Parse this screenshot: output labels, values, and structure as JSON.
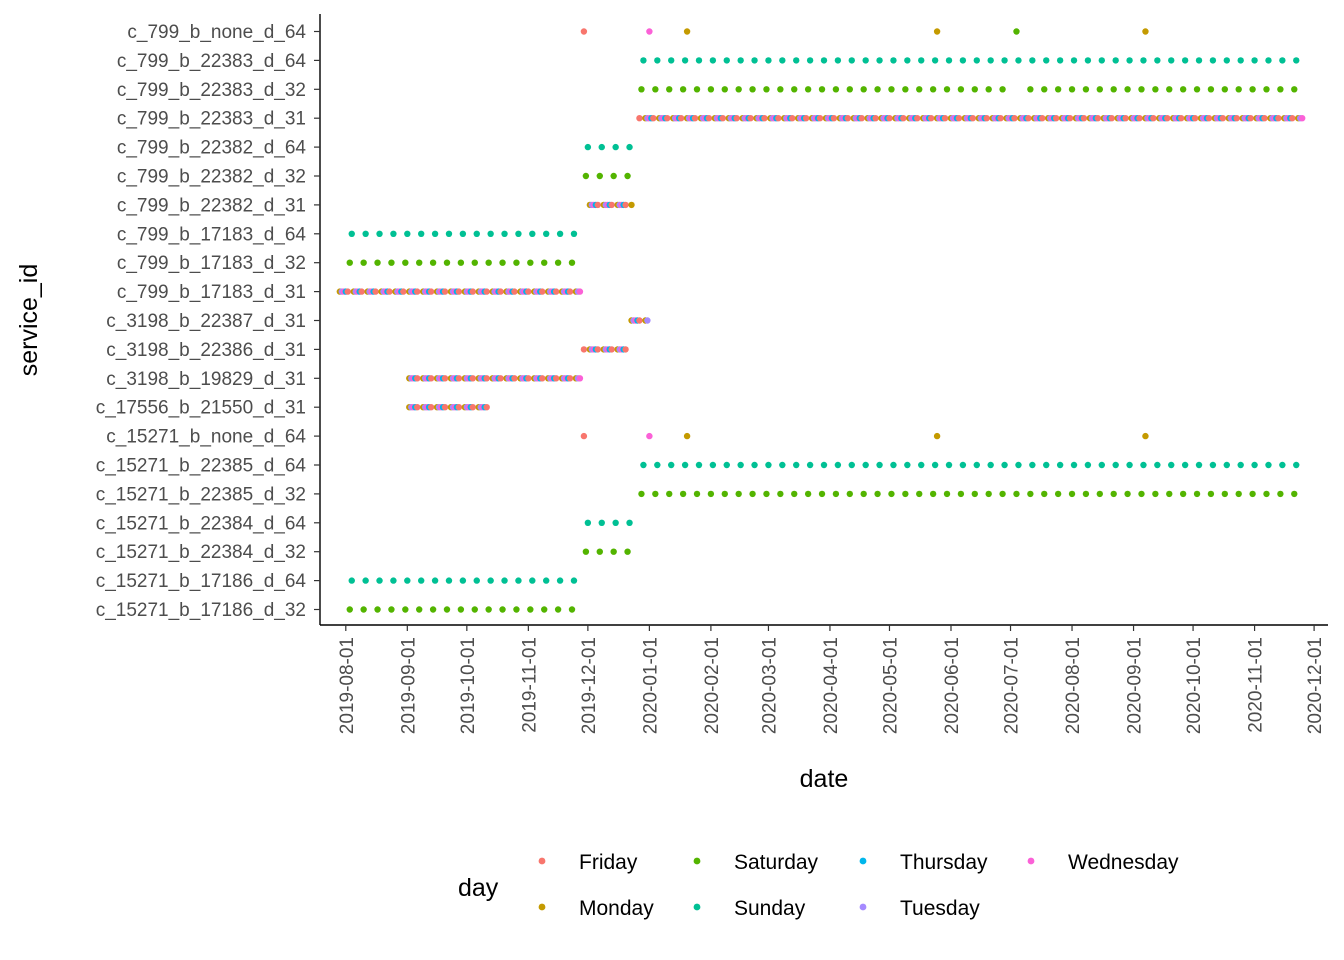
{
  "chart_data": {
    "type": "scatter",
    "title": "",
    "xlabel": "date",
    "ylabel": "service_id",
    "grid": false,
    "legend_position": "bottom",
    "xlim": [
      "2019-07-19",
      "2020-12-08"
    ],
    "x_ticks": [
      "2019-08-01",
      "2019-09-01",
      "2019-10-01",
      "2019-11-01",
      "2019-12-01",
      "2020-01-01",
      "2020-02-01",
      "2020-03-01",
      "2020-04-01",
      "2020-05-01",
      "2020-06-01",
      "2020-07-01",
      "2020-08-01",
      "2020-09-01",
      "2020-10-01",
      "2020-11-01",
      "2020-12-01"
    ],
    "categories": [
      "c_799_b_none_d_64",
      "c_799_b_22383_d_64",
      "c_799_b_22383_d_32",
      "c_799_b_22383_d_31",
      "c_799_b_22382_d_64",
      "c_799_b_22382_d_32",
      "c_799_b_22382_d_31",
      "c_799_b_17183_d_64",
      "c_799_b_17183_d_32",
      "c_799_b_17183_d_31",
      "c_3198_b_22387_d_31",
      "c_3198_b_22386_d_31",
      "c_3198_b_19829_d_31",
      "c_17556_b_21550_d_31",
      "c_15271_b_none_d_64",
      "c_15271_b_22385_d_64",
      "c_15271_b_22385_d_32",
      "c_15271_b_22384_d_64",
      "c_15271_b_22384_d_32",
      "c_15271_b_17186_d_64",
      "c_15271_b_17186_d_32"
    ],
    "legend_title": "day",
    "series": [
      {
        "name": "Friday",
        "color": "#F8766D"
      },
      {
        "name": "Monday",
        "color": "#C49A00"
      },
      {
        "name": "Saturday",
        "color": "#53B400"
      },
      {
        "name": "Sunday",
        "color": "#00C094"
      },
      {
        "name": "Thursday",
        "color": "#00B6EB"
      },
      {
        "name": "Tuesday",
        "color": "#A58AFF"
      },
      {
        "name": "Wednesday",
        "color": "#FB61D7"
      }
    ],
    "weekly_runs": [
      {
        "service": "c_799_b_22383_d_64",
        "days": [
          "Sunday"
        ],
        "start": "2019-12-29",
        "end": "2020-11-22"
      },
      {
        "service": "c_799_b_22383_d_32",
        "days": [
          "Saturday"
        ],
        "start": "2019-12-28",
        "end": "2020-06-27"
      },
      {
        "service": "c_799_b_22383_d_32",
        "days": [
          "Saturday"
        ],
        "start": "2020-07-11",
        "end": "2020-11-21"
      },
      {
        "service": "c_799_b_22383_d_31",
        "days": [
          "Monday",
          "Tuesday",
          "Wednesday",
          "Thursday",
          "Friday"
        ],
        "start": "2019-12-27",
        "end": "2020-11-25"
      },
      {
        "service": "c_799_b_22382_d_64",
        "days": [
          "Sunday"
        ],
        "start": "2019-12-01",
        "end": "2019-12-22"
      },
      {
        "service": "c_799_b_22382_d_32",
        "days": [
          "Saturday"
        ],
        "start": "2019-11-30",
        "end": "2019-12-21"
      },
      {
        "service": "c_799_b_22382_d_31",
        "days": [
          "Monday",
          "Tuesday",
          "Wednesday",
          "Thursday",
          "Friday"
        ],
        "start": "2019-12-02",
        "end": "2019-12-23"
      },
      {
        "service": "c_799_b_17183_d_64",
        "days": [
          "Sunday"
        ],
        "start": "2019-08-04",
        "end": "2019-11-24"
      },
      {
        "service": "c_799_b_17183_d_32",
        "days": [
          "Saturday"
        ],
        "start": "2019-08-03",
        "end": "2019-11-23"
      },
      {
        "service": "c_799_b_17183_d_31",
        "days": [
          "Monday",
          "Tuesday",
          "Wednesday",
          "Thursday",
          "Friday"
        ],
        "start": "2019-07-29",
        "end": "2019-11-27"
      },
      {
        "service": "c_3198_b_22387_d_31",
        "days": [
          "Monday",
          "Tuesday",
          "Wednesday",
          "Thursday",
          "Friday"
        ],
        "start": "2019-12-23",
        "end": "2019-12-31"
      },
      {
        "service": "c_3198_b_22386_d_31",
        "days": [
          "Monday",
          "Tuesday",
          "Wednesday",
          "Thursday",
          "Friday"
        ],
        "start": "2019-11-29",
        "end": "2019-12-20"
      },
      {
        "service": "c_3198_b_19829_d_31",
        "days": [
          "Monday",
          "Tuesday",
          "Wednesday",
          "Thursday",
          "Friday"
        ],
        "start": "2019-09-02",
        "end": "2019-11-27"
      },
      {
        "service": "c_17556_b_21550_d_31",
        "days": [
          "Monday",
          "Tuesday",
          "Wednesday",
          "Thursday",
          "Friday"
        ],
        "start": "2019-09-02",
        "end": "2019-10-11"
      },
      {
        "service": "c_15271_b_22385_d_64",
        "days": [
          "Sunday"
        ],
        "start": "2019-12-29",
        "end": "2020-11-22"
      },
      {
        "service": "c_15271_b_22385_d_32",
        "days": [
          "Saturday"
        ],
        "start": "2019-12-28",
        "end": "2020-11-21"
      },
      {
        "service": "c_15271_b_22384_d_64",
        "days": [
          "Sunday"
        ],
        "start": "2019-12-01",
        "end": "2019-12-22"
      },
      {
        "service": "c_15271_b_22384_d_32",
        "days": [
          "Saturday"
        ],
        "start": "2019-11-30",
        "end": "2019-12-21"
      },
      {
        "service": "c_15271_b_17186_d_64",
        "days": [
          "Sunday"
        ],
        "start": "2019-08-04",
        "end": "2019-11-24"
      },
      {
        "service": "c_15271_b_17186_d_32",
        "days": [
          "Saturday"
        ],
        "start": "2019-08-03",
        "end": "2019-11-23"
      }
    ],
    "points": [
      {
        "service": "c_799_b_none_d_64",
        "date": "2019-11-29",
        "day": "Friday"
      },
      {
        "service": "c_799_b_none_d_64",
        "date": "2020-01-01",
        "day": "Wednesday"
      },
      {
        "service": "c_799_b_none_d_64",
        "date": "2020-01-20",
        "day": "Monday"
      },
      {
        "service": "c_799_b_none_d_64",
        "date": "2020-05-25",
        "day": "Monday"
      },
      {
        "service": "c_799_b_none_d_64",
        "date": "2020-07-04",
        "day": "Saturday"
      },
      {
        "service": "c_799_b_none_d_64",
        "date": "2020-09-07",
        "day": "Monday"
      },
      {
        "service": "c_15271_b_none_d_64",
        "date": "2019-11-29",
        "day": "Friday"
      },
      {
        "service": "c_15271_b_none_d_64",
        "date": "2020-01-01",
        "day": "Wednesday"
      },
      {
        "service": "c_15271_b_none_d_64",
        "date": "2020-01-20",
        "day": "Monday"
      },
      {
        "service": "c_15271_b_none_d_64",
        "date": "2020-05-25",
        "day": "Monday"
      },
      {
        "service": "c_15271_b_none_d_64",
        "date": "2020-09-07",
        "day": "Monday"
      }
    ]
  }
}
